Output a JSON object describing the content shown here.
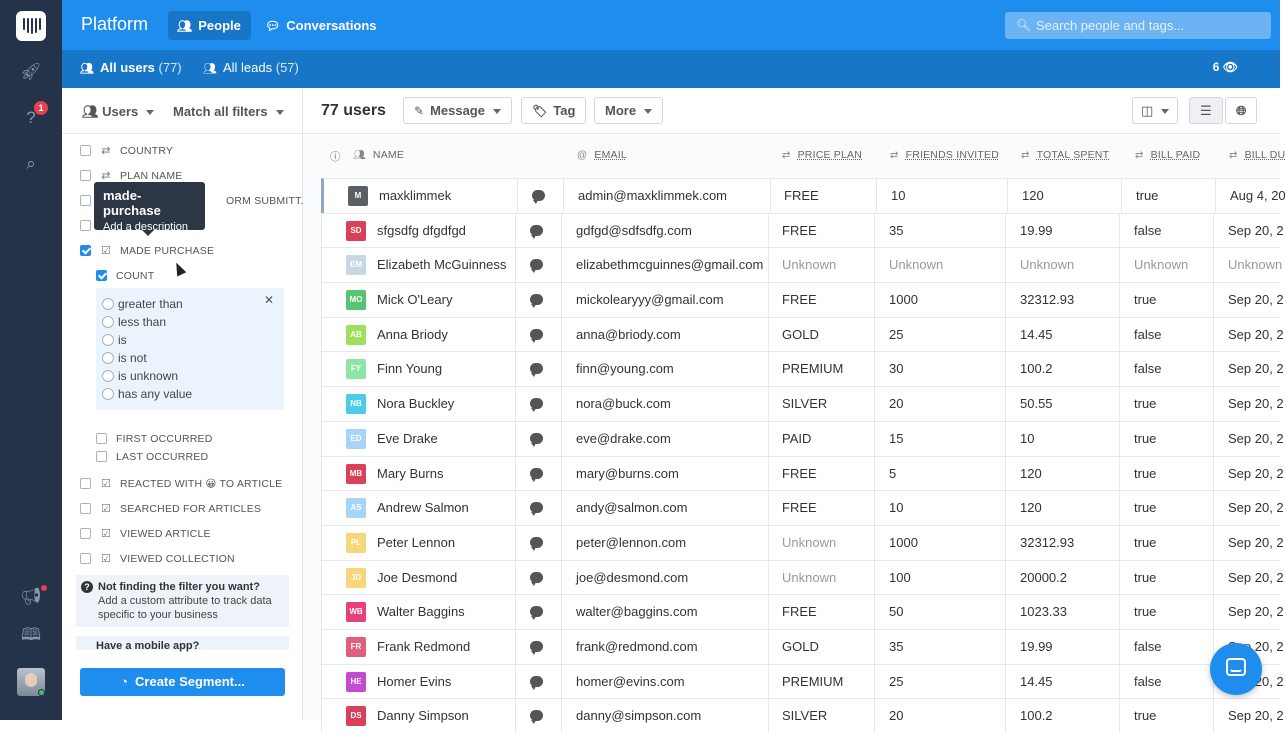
{
  "header": {
    "brand": "Platform",
    "nav": [
      {
        "label": "People",
        "icon": "people-icon",
        "active": true
      },
      {
        "label": "Conversations",
        "icon": "chat-bubble-icon",
        "active": false
      }
    ],
    "search_placeholder": "Search people and tags..."
  },
  "rail": {
    "help_badge": "1"
  },
  "subnav": {
    "tabs": [
      {
        "label": "All users",
        "count": "(77)"
      },
      {
        "label": "All leads",
        "count": "(57)"
      }
    ],
    "viewers": "6"
  },
  "filters": {
    "users_label": "Users",
    "match_label": "Match all filters",
    "items": [
      {
        "label": "COUNTRY"
      },
      {
        "label": "PLAN NAME"
      },
      {
        "label": "ORM SUBMITT..."
      },
      {
        "label": ""
      },
      {
        "label": "MADE PURCHASE"
      }
    ],
    "count_label": "COUNT",
    "operators": [
      "greater than",
      "less than",
      "is",
      "is not",
      "is unknown",
      "has any value"
    ],
    "sub_items": [
      "FIRST OCCURRED",
      "LAST OCCURRED"
    ],
    "events": [
      {
        "label": "REACTED WITH 😀 TO ARTICLE"
      },
      {
        "label": "SEARCHED FOR ARTICLES"
      },
      {
        "label": "VIEWED ARTICLE"
      },
      {
        "label": "VIEWED COLLECTION"
      }
    ],
    "help_title": "Not finding the filter you want?",
    "help_text": "Add a custom attribute to track data specific to your business",
    "mobile_text": "Have a mobile app?",
    "create_button": "Create Segment...",
    "tooltip_title": "made-purchase",
    "tooltip_link": "Add a description"
  },
  "toolbar": {
    "count": "77 users",
    "message": "Message",
    "tag": "Tag",
    "more": "More"
  },
  "columns": [
    "NAME",
    "EMAIL",
    "PRICE PLAN",
    "FRIENDS INVITED",
    "TOTAL SPENT",
    "BILL PAID",
    "BILL DU"
  ],
  "rows": [
    {
      "initials": "M",
      "color": "#5a5f66",
      "name": "maxklimmek",
      "email": "admin@maxklimmek.com",
      "plan": "FREE",
      "friends": "10",
      "spent": "120",
      "paid": "true",
      "due": "Aug 4, 20"
    },
    {
      "initials": "SD",
      "color": "#d9405a",
      "name": "sfgsdfg dfgdfgd",
      "email": "gdfgd@sdfsdfg.com",
      "plan": "FREE",
      "friends": "35",
      "spent": "19.99",
      "paid": "false",
      "due": "Sep 20, 2"
    },
    {
      "initials": "EM",
      "color": "#c9d6e4",
      "name": "Elizabeth McGuinness",
      "email": "elizabethmcguinnes@gmail.com",
      "plan": "Unknown",
      "friends": "Unknown",
      "spent": "Unknown",
      "paid": "Unknown",
      "due": "Unknown",
      "muted": true
    },
    {
      "initials": "MO",
      "color": "#56c474",
      "name": "Mick O'Leary",
      "email": "mickolearyyy@gmail.com",
      "plan": "FREE",
      "friends": "1000",
      "spent": "32312.93",
      "paid": "true",
      "due": "Sep 20, 2"
    },
    {
      "initials": "AB",
      "color": "#9fe05a",
      "name": "Anna Briody",
      "email": "anna@briody.com",
      "plan": "GOLD",
      "friends": "25",
      "spent": "14.45",
      "paid": "false",
      "due": "Sep 20, 2"
    },
    {
      "initials": "FY",
      "color": "#8de6a4",
      "name": "Finn Young",
      "email": "finn@young.com",
      "plan": "PREMIUM",
      "friends": "30",
      "spent": "100.2",
      "paid": "false",
      "due": "Sep 20, 2"
    },
    {
      "initials": "NB",
      "color": "#4ccbe6",
      "name": "Nora Buckley",
      "email": "nora@buck.com",
      "plan": "SILVER",
      "friends": "20",
      "spent": "50.55",
      "paid": "true",
      "due": "Sep 20, 2"
    },
    {
      "initials": "ED",
      "color": "#a8d4f7",
      "name": "Eve Drake",
      "email": "eve@drake.com",
      "plan": "PAID",
      "friends": "15",
      "spent": "10",
      "paid": "true",
      "due": "Sep 20, 2"
    },
    {
      "initials": "MB",
      "color": "#d9405a",
      "name": "Mary Burns",
      "email": "mary@burns.com",
      "plan": "FREE",
      "friends": "5",
      "spent": "120",
      "paid": "true",
      "due": "Sep 20, 2"
    },
    {
      "initials": "AS",
      "color": "#a8d4f7",
      "name": "Andrew Salmon",
      "email": "andy@salmon.com",
      "plan": "FREE",
      "friends": "10",
      "spent": "120",
      "paid": "true",
      "due": "Sep 20, 2"
    },
    {
      "initials": "PL",
      "color": "#f7d67a",
      "name": "Peter Lennon",
      "email": "peter@lennon.com",
      "plan": "Unknown",
      "friends": "1000",
      "spent": "32312.93",
      "paid": "true",
      "due": "Sep 20, 2",
      "plan_muted": true
    },
    {
      "initials": "JD",
      "color": "#f7d67a",
      "name": "Joe Desmond",
      "email": "joe@desmond.com",
      "plan": "Unknown",
      "friends": "100",
      "spent": "20000.2",
      "paid": "true",
      "due": "Sep 20, 2",
      "plan_muted": true
    },
    {
      "initials": "WB",
      "color": "#e8407a",
      "name": "Walter Baggins",
      "email": "walter@baggins.com",
      "plan": "FREE",
      "friends": "50",
      "spent": "1023.33",
      "paid": "true",
      "due": "Sep 20, 2"
    },
    {
      "initials": "FR",
      "color": "#e0607a",
      "name": "Frank Redmond",
      "email": "frank@redmond.com",
      "plan": "GOLD",
      "friends": "35",
      "spent": "19.99",
      "paid": "false",
      "due": "Sep 20, 2"
    },
    {
      "initials": "HE",
      "color": "#c44ad0",
      "name": "Homer Evins",
      "email": "homer@evins.com",
      "plan": "PREMIUM",
      "friends": "25",
      "spent": "14.45",
      "paid": "false",
      "due": "Sep 20, 2"
    },
    {
      "initials": "DS",
      "color": "#d9405a",
      "name": "Danny Simpson",
      "email": "danny@simpson.com",
      "plan": "SILVER",
      "friends": "20",
      "spent": "100.2",
      "paid": "true",
      "due": "Sep 20, 2"
    }
  ]
}
